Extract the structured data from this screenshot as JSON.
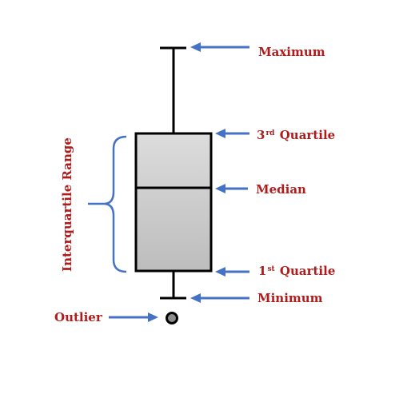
{
  "colors": {
    "label": "#b01c1c",
    "arrow": "#4472c4",
    "box_fill_top": "#dcdcdc",
    "box_fill_bottom": "#bdbdbd",
    "stroke": "#000000",
    "brace": "#4472c4",
    "outlier_fill": "#8c8c8c"
  },
  "labels": {
    "maximum": "Maximum",
    "third_quartile_prefix": "3",
    "third_quartile_suffix": "rd",
    "third_quartile_text": "Quartile",
    "median": "Median",
    "first_quartile_prefix": "1",
    "first_quartile_suffix": "st",
    "first_quartile_text": "Quartile",
    "minimum": "Minimum",
    "outlier": "Outlier",
    "iqr": "Interquartile Range"
  }
}
